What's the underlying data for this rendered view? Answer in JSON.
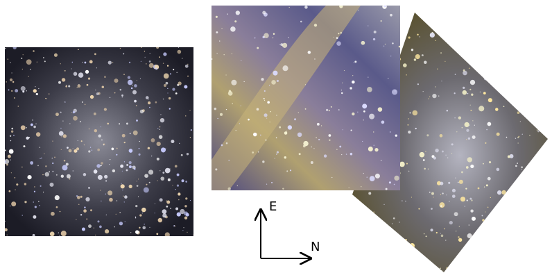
{
  "compass": {
    "east": "E",
    "north": "N"
  }
}
